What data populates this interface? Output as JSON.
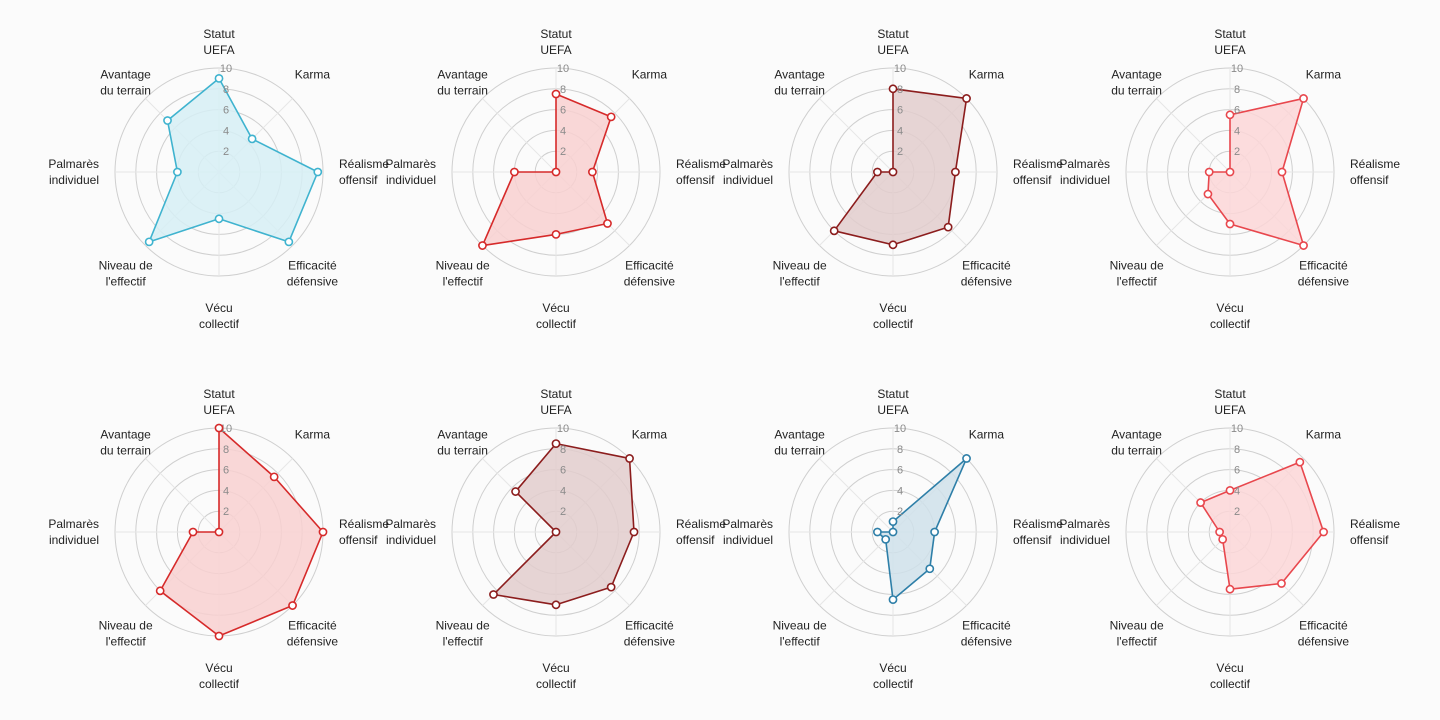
{
  "chart_data": {
    "type": "radar",
    "axes": [
      [
        "Statut",
        "UEFA"
      ],
      [
        "Karma"
      ],
      [
        "Réalisme",
        "offensif"
      ],
      [
        "Efficacité",
        "défensive"
      ],
      [
        "Vécu",
        "collectif"
      ],
      [
        "Niveau de",
        "l'effectif"
      ],
      [
        "Palmarès",
        "individuel"
      ],
      [
        "Avantage",
        "du terrain"
      ]
    ],
    "rlim": [
      0,
      10
    ],
    "ticks": [
      2,
      4,
      6,
      8,
      10
    ],
    "grid": true,
    "charts": [
      {
        "color": "#3fb3cf",
        "fill": "#d6eef4",
        "values": [
          9,
          4.5,
          9.5,
          9.5,
          4.5,
          9.5,
          4,
          7
        ]
      },
      {
        "color": "#d62a2a",
        "fill": "#f8d0d0",
        "values": [
          7.5,
          7.5,
          3.5,
          7,
          6,
          10,
          4,
          0
        ]
      },
      {
        "color": "#8c1d1d",
        "fill": "#e2cccc",
        "values": [
          8,
          10,
          6,
          7.5,
          7,
          8,
          1.5,
          0
        ]
      },
      {
        "color": "#e8474d",
        "fill": "#fbd6d7",
        "values": [
          5.5,
          10,
          5,
          10,
          5,
          3,
          2,
          0
        ]
      },
      {
        "color": "#d62a2a",
        "fill": "#f8d0d0",
        "values": [
          10,
          7.5,
          10,
          10,
          10,
          8,
          2.5,
          0
        ]
      },
      {
        "color": "#8c1d1d",
        "fill": "#e2cccc",
        "values": [
          8.5,
          10,
          7.5,
          7.5,
          7,
          8.5,
          0,
          5.5
        ]
      },
      {
        "color": "#2e7fa8",
        "fill": "#cfe0ea",
        "values": [
          1,
          10,
          4,
          5,
          6.5,
          1,
          1.5,
          0
        ]
      },
      {
        "color": "#e8474d",
        "fill": "#fbd6d7",
        "values": [
          4,
          9.5,
          9,
          7,
          5.5,
          1,
          1,
          4
        ]
      }
    ]
  }
}
